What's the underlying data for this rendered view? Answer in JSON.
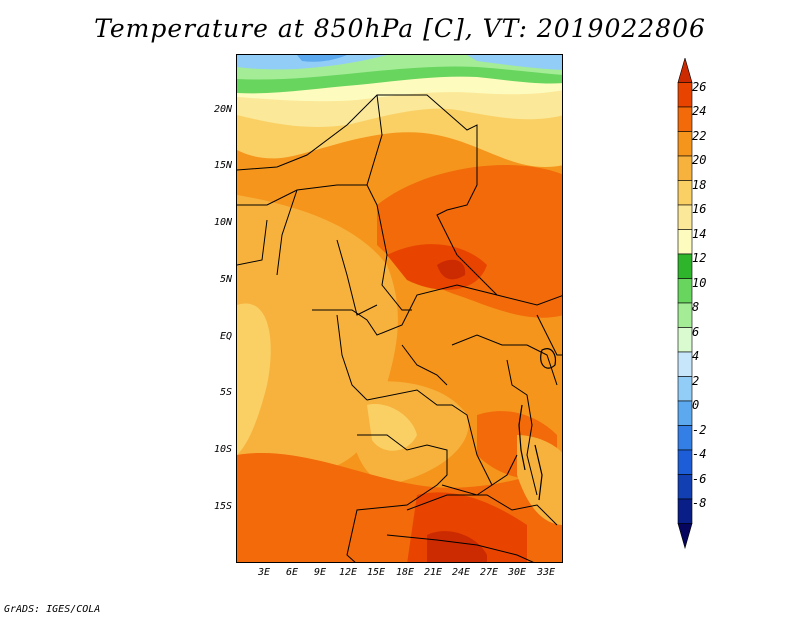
{
  "title": "Temperature at 850hPa [C], VT: 2019022806",
  "credit": "GrADS: IGES/COLA",
  "lat_labels": [
    "20N",
    "15N",
    "10N",
    "5N",
    "EQ",
    "5S",
    "10S",
    "15S"
  ],
  "lon_labels": [
    "3E",
    "6E",
    "9E",
    "12E",
    "15E",
    "18E",
    "21E",
    "24E",
    "27E",
    "30E",
    "33E"
  ],
  "colorbar": {
    "labels": [
      "26",
      "24",
      "22",
      "20",
      "18",
      "16",
      "14",
      "12",
      "10",
      "8",
      "6",
      "4",
      "2",
      "0",
      "-2",
      "-4",
      "-6",
      "-8"
    ],
    "colors": [
      "#cc2a00",
      "#e84400",
      "#f26a0a",
      "#f5951c",
      "#f7b23e",
      "#fad065",
      "#fbe898",
      "#fdfbbe",
      "#2fb52c",
      "#67d55e",
      "#a4ec96",
      "#dafbd0",
      "#c7e6fb",
      "#92cdf7",
      "#5ca9ef",
      "#337fe6",
      "#1d5ed8",
      "#1240b3",
      "#0a1e88",
      "#06065e"
    ]
  }
}
